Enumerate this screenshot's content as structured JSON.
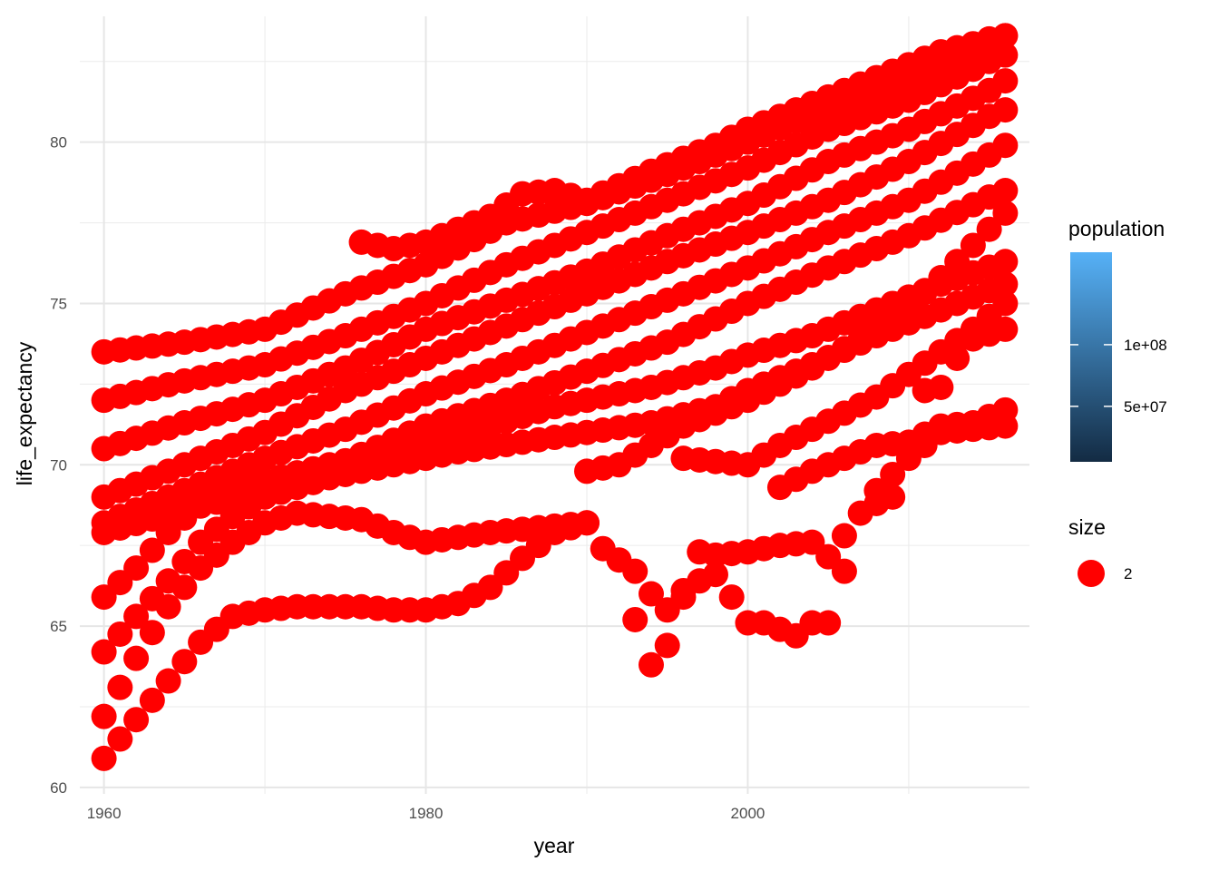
{
  "chart_data": {
    "type": "scatter",
    "xlabel": "year",
    "ylabel": "life_expectancy",
    "xlim": [
      1958.5,
      2017.5
    ],
    "ylim": [
      59.8,
      83.9
    ],
    "x_ticks": [
      1960,
      1980,
      2000
    ],
    "x_tick_labels": [
      "1960",
      "1980",
      "2000"
    ],
    "y_ticks": [
      60,
      65,
      70,
      75,
      80
    ],
    "y_tick_labels": [
      "60",
      "65",
      "70",
      "75",
      "80"
    ],
    "grid": true,
    "point_color": "#ff0000",
    "legends": {
      "population": {
        "title": "population",
        "type": "colorbar",
        "range": [
          5000000,
          175000000
        ],
        "breaks": [
          50000000,
          100000000
        ],
        "break_labels": [
          "5e+07",
          "1e+08"
        ],
        "low_color": "#132b43",
        "high_color": "#56b1f7"
      },
      "size": {
        "title": "size",
        "key_label": "2",
        "key_color": "#ff0000"
      }
    },
    "series": [
      {
        "x": [
          1960,
          1965,
          1970,
          1975,
          1980,
          1985,
          1990,
          1995,
          2000,
          2005,
          2010,
          2015,
          2016
        ],
        "y": [
          73.5,
          73.8,
          74.2,
          75.3,
          76.2,
          77.5,
          78.1,
          79.0,
          80.0,
          81.1,
          82.0,
          83.2,
          83.3
        ]
      },
      {
        "x": [
          1960,
          1965,
          1970,
          1975,
          1980,
          1985,
          1990,
          1995,
          2000,
          2005,
          2010,
          2015,
          2016
        ],
        "y": [
          72.0,
          72.6,
          73.1,
          74.0,
          75.0,
          76.2,
          77.2,
          78.2,
          79.2,
          80.4,
          81.3,
          82.5,
          82.7
        ]
      },
      {
        "x": [
          1960,
          1965,
          1970,
          1975,
          1980,
          1985,
          1990,
          1995,
          2000,
          2005,
          2010,
          2015,
          2016
        ],
        "y": [
          70.5,
          71.3,
          72.0,
          73.0,
          74.2,
          75.1,
          76.0,
          77.1,
          78.1,
          79.4,
          80.4,
          81.6,
          81.9
        ]
      },
      {
        "x": [
          1960,
          1965,
          1970,
          1975,
          1980,
          1985,
          1990,
          1995,
          2000,
          2005,
          2010,
          2015,
          2016
        ],
        "y": [
          69.0,
          70.0,
          71.0,
          72.3,
          73.3,
          74.3,
          75.3,
          76.3,
          77.2,
          78.2,
          79.4,
          80.8,
          81.0
        ]
      },
      {
        "x": [
          1960,
          1965,
          1970,
          1975,
          1980,
          1985,
          1990,
          1995,
          2000,
          2005,
          2010,
          2015,
          2016
        ],
        "y": [
          68.2,
          69.2,
          70.2,
          71.1,
          72.2,
          73.1,
          74.1,
          75.1,
          76.1,
          77.2,
          78.2,
          79.6,
          79.9
        ]
      },
      {
        "x": [
          1960,
          1965,
          1970,
          1975,
          1980,
          1985,
          1990,
          1995,
          2000,
          2005,
          2010,
          2015,
          2016
        ],
        "y": [
          67.9,
          68.6,
          69.2,
          70.1,
          71.2,
          72.0,
          72.9,
          73.8,
          75.0,
          76.1,
          77.1,
          78.3,
          78.5
        ]
      },
      {
        "x": [
          1960,
          1962,
          1964,
          1966,
          1968,
          1970,
          1974,
          1978,
          1980,
          1984,
          1988,
          1990,
          1994,
          1998,
          2000,
          2004,
          2008,
          2012,
          2016
        ],
        "y": [
          65.9,
          66.8,
          67.9,
          68.8,
          69.2,
          69.5,
          70.0,
          70.5,
          70.8,
          71.2,
          71.8,
          72.0,
          72.4,
          73.0,
          73.4,
          74.0,
          74.8,
          75.6,
          76.3
        ]
      },
      {
        "x": [
          1960,
          1962,
          1964,
          1966,
          1968,
          1970,
          1974,
          1978,
          1982,
          1986,
          1990,
          1994,
          1998,
          2000,
          2004,
          2008,
          2012,
          2016
        ],
        "y": [
          64.2,
          65.3,
          66.4,
          67.6,
          68.4,
          69.0,
          69.6,
          70.0,
          70.4,
          70.7,
          71.0,
          71.3,
          71.8,
          72.3,
          73.1,
          74.0,
          74.8,
          75.6
        ]
      },
      {
        "x": [
          1960,
          1962,
          1964,
          1966,
          1968,
          1970,
          1972,
          1974,
          1976,
          1978,
          1980,
          1984,
          1988,
          1990
        ],
        "y": [
          62.2,
          64.0,
          65.6,
          66.8,
          67.6,
          68.2,
          68.5,
          68.4,
          68.3,
          67.9,
          67.6,
          67.9,
          68.1,
          68.2
        ]
      },
      {
        "x": [
          1960,
          1962,
          1964,
          1966,
          1968,
          1970,
          1972,
          1974,
          1976,
          1978,
          1980,
          1982,
          1984,
          1986,
          1988,
          1990
        ],
        "y": [
          60.9,
          62.1,
          63.3,
          64.5,
          65.3,
          65.5,
          65.6,
          65.6,
          65.6,
          65.5,
          65.5,
          65.7,
          66.2,
          67.1,
          67.9,
          68.2
        ]
      },
      {
        "x": [
          1976,
          1978,
          1980,
          1982,
          1984,
          1986,
          1988,
          1990,
          1994,
          1998,
          2000,
          2004,
          2008,
          2012,
          2016
        ],
        "y": [
          76.9,
          76.7,
          76.9,
          77.3,
          77.7,
          78.4,
          78.5,
          78.2,
          79.1,
          79.9,
          80.4,
          81.2,
          82.0,
          82.8,
          83.3
        ]
      },
      {
        "x": [
          1990,
          1992,
          1994,
          1996,
          1998,
          2000,
          2002,
          2004,
          2006,
          2008,
          2010,
          2012,
          2014,
          2016
        ],
        "y": [
          69.8,
          70.0,
          70.6,
          71.2,
          71.6,
          72.0,
          72.5,
          73.0,
          73.6,
          74.2,
          74.9,
          75.8,
          76.8,
          77.8
        ]
      },
      {
        "x": [
          1991,
          1993,
          1994,
          1995,
          1996,
          1997,
          1998,
          2000,
          2002,
          2004,
          2006
        ],
        "y": [
          67.4,
          66.7,
          63.8,
          64.4,
          65.9,
          66.4,
          67.2,
          67.3,
          67.5,
          67.6,
          66.7
        ]
      },
      {
        "x": [
          1993,
          1994,
          1995,
          1996,
          1997,
          1999,
          2000,
          2001,
          2002,
          2003,
          2004,
          2005
        ],
        "y": [
          65.2,
          66.0,
          65.5,
          66.1,
          67.3,
          65.9,
          65.1,
          65.1,
          64.9,
          64.7,
          65.1,
          65.1
        ]
      },
      {
        "x": [
          2006,
          2008,
          2010,
          2012,
          2014,
          2016
        ],
        "y": [
          67.8,
          69.2,
          70.2,
          71.0,
          71.1,
          71.2
        ]
      },
      {
        "x": [
          2008,
          2009,
          2010,
          2011,
          2012,
          2013,
          2014,
          2016
        ],
        "y": [
          68.8,
          69.0,
          70.6,
          72.3,
          72.4,
          73.3,
          73.9,
          74.2
        ]
      },
      {
        "x": [
          1996,
          1998,
          2000,
          2002,
          2004,
          2006,
          2008,
          2010,
          2012,
          2014,
          2016
        ],
        "y": [
          70.2,
          70.1,
          70.0,
          70.6,
          71.1,
          71.6,
          72.1,
          72.8,
          73.5,
          74.2,
          75.0
        ]
      },
      {
        "x": [
          2002,
          2004,
          2006,
          2008,
          2010,
          2012,
          2014,
          2016
        ],
        "y": [
          69.3,
          69.8,
          70.2,
          70.6,
          70.7,
          71.2,
          71.3,
          71.7
        ]
      }
    ]
  }
}
